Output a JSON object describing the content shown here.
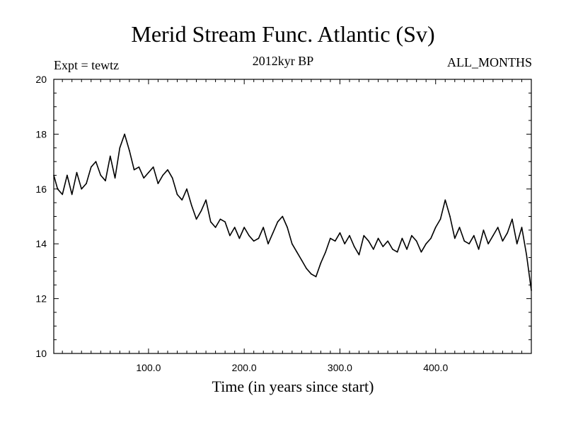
{
  "chart_data": {
    "type": "line",
    "title": "Merid Stream Func. Atlantic (Sv)",
    "subtitle_left": "Expt = tewtz",
    "subtitle_center": "2012kyr BP",
    "subtitle_right": "ALL_MONTHS",
    "xlabel": "Time (in years since start)",
    "ylabel": "",
    "xlim": [
      1,
      500
    ],
    "ylim": [
      10,
      20
    ],
    "xticks": [
      100,
      200,
      300,
      400
    ],
    "xtick_labels": [
      "100.0",
      "200.0",
      "300.0",
      "400.0"
    ],
    "yticks": [
      10,
      12,
      14,
      16,
      18,
      20
    ],
    "ytick_labels": [
      "10",
      "12",
      "14",
      "16",
      "18",
      "20"
    ],
    "series": [
      {
        "name": "Merid Stream Func. Atlantic",
        "color": "#000000",
        "x": [
          1,
          5,
          10,
          15,
          20,
          25,
          30,
          35,
          40,
          45,
          50,
          55,
          60,
          65,
          70,
          75,
          80,
          85,
          90,
          95,
          100,
          105,
          110,
          115,
          120,
          125,
          130,
          135,
          140,
          145,
          150,
          155,
          160,
          165,
          170,
          175,
          180,
          185,
          190,
          195,
          200,
          205,
          210,
          215,
          220,
          225,
          230,
          235,
          240,
          245,
          250,
          255,
          260,
          265,
          270,
          275,
          280,
          285,
          290,
          295,
          300,
          305,
          310,
          315,
          320,
          325,
          330,
          335,
          340,
          345,
          350,
          355,
          360,
          365,
          370,
          375,
          380,
          385,
          390,
          395,
          400,
          405,
          410,
          415,
          420,
          425,
          430,
          435,
          440,
          445,
          450,
          455,
          460,
          465,
          470,
          475,
          480,
          485,
          490,
          495,
          500
        ],
        "values": [
          16.5,
          16.0,
          15.8,
          16.5,
          15.8,
          16.6,
          16.0,
          16.2,
          16.8,
          17.0,
          16.5,
          16.3,
          17.2,
          16.4,
          17.5,
          18.0,
          17.4,
          16.7,
          16.8,
          16.4,
          16.6,
          16.8,
          16.2,
          16.5,
          16.7,
          16.4,
          15.8,
          15.6,
          16.0,
          15.4,
          14.9,
          15.2,
          15.6,
          14.8,
          14.6,
          14.9,
          14.8,
          14.3,
          14.6,
          14.2,
          14.6,
          14.3,
          14.1,
          14.2,
          14.6,
          14.0,
          14.4,
          14.8,
          15.0,
          14.6,
          14.0,
          13.7,
          13.4,
          13.1,
          12.9,
          12.8,
          13.3,
          13.7,
          14.2,
          14.1,
          14.4,
          14.0,
          14.3,
          13.9,
          13.6,
          14.3,
          14.1,
          13.8,
          14.2,
          13.9,
          14.1,
          13.8,
          13.7,
          14.2,
          13.8,
          14.3,
          14.1,
          13.7,
          14.0,
          14.2,
          14.6,
          14.9,
          15.6,
          15.0,
          14.2,
          14.6,
          14.1,
          14.0,
          14.3,
          13.8,
          14.5,
          14.0,
          14.3,
          14.6,
          14.1,
          14.4,
          14.9,
          14.0,
          14.6,
          13.6,
          12.3
        ]
      }
    ]
  }
}
